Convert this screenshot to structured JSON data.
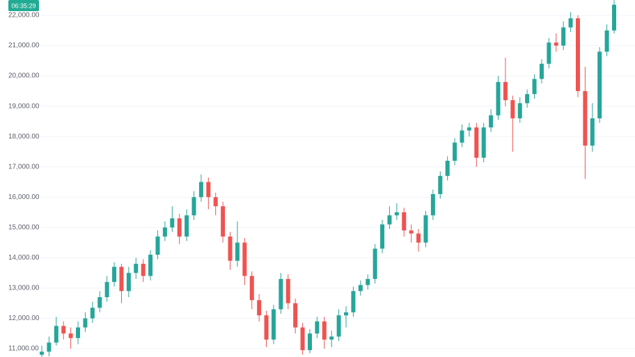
{
  "chart_data": {
    "type": "candlestick",
    "countdown": "06:35:29",
    "up_color": "#26a69a",
    "down_color": "#ef5350",
    "grid": true,
    "ylim": [
      10725,
      22505
    ],
    "yticks": [
      {
        "value": 11000,
        "label": "11,000.00"
      },
      {
        "value": 12000,
        "label": "12,000.00"
      },
      {
        "value": 13000,
        "label": "13,000.00"
      },
      {
        "value": 14000,
        "label": "14,000.00"
      },
      {
        "value": 15000,
        "label": "15,000.00"
      },
      {
        "value": 16000,
        "label": "16,000.00"
      },
      {
        "value": 17000,
        "label": "17,000.00"
      },
      {
        "value": 18000,
        "label": "18,000.00"
      },
      {
        "value": 19000,
        "label": "19,000.00"
      },
      {
        "value": 20000,
        "label": "20,000.00"
      },
      {
        "value": 21000,
        "label": "21,000.00"
      },
      {
        "value": 22000,
        "label": "22,000.00"
      }
    ],
    "open": [
      10800,
      10900,
      11200,
      11750,
      11500,
      11350,
      11700,
      12000,
      12350,
      12700,
      13200,
      13700,
      12900,
      13500,
      13800,
      13400,
      14100,
      14700,
      15000,
      15300,
      14700,
      15400,
      16000,
      16500,
      16000,
      15700,
      14700,
      13900,
      14500,
      13400,
      12600,
      12100,
      11300,
      12300,
      13300,
      12500,
      11700,
      10950,
      11500,
      11900,
      11300,
      11400,
      12100,
      12200,
      12900,
      13100,
      13300,
      14300,
      15100,
      15400,
      15500,
      14900,
      14800,
      14500,
      15400,
      16100,
      16700,
      17200,
      17800,
      18200,
      18300,
      17300,
      18300,
      18700,
      19800,
      19200,
      18600,
      19100,
      19400,
      19900,
      20400,
      21100,
      21000,
      21600,
      21900,
      19500,
      17700,
      18600,
      20800,
      21500
    ],
    "high": [
      11100,
      11400,
      12050,
      11900,
      11700,
      11900,
      12200,
      12550,
      12900,
      13400,
      13850,
      13800,
      13700,
      14000,
      13950,
      14250,
      14900,
      15200,
      15700,
      15450,
      15600,
      16200,
      16750,
      16650,
      16150,
      15850,
      14850,
      15200,
      14650,
      13550,
      12800,
      12250,
      12450,
      13500,
      13450,
      12650,
      11850,
      11650,
      12050,
      12050,
      11600,
      12300,
      12400,
      13050,
      13250,
      13450,
      14450,
      15250,
      15700,
      15800,
      15650,
      15100,
      14950,
      15550,
      16250,
      16850,
      17350,
      17950,
      18400,
      18450,
      18450,
      18450,
      18900,
      20000,
      20600,
      19350,
      19300,
      19550,
      20050,
      20550,
      21250,
      21400,
      21800,
      22100,
      22000,
      20300,
      19100,
      20950,
      21700,
      22500
    ],
    "low": [
      10650,
      10750,
      11100,
      11300,
      11000,
      11150,
      11550,
      11850,
      12200,
      12550,
      13050,
      12500,
      12700,
      13300,
      13200,
      13250,
      13950,
      14550,
      14850,
      14450,
      14550,
      15250,
      15850,
      15600,
      15400,
      14500,
      13600,
      13700,
      13100,
      12300,
      11900,
      11050,
      11150,
      12150,
      12300,
      11500,
      10800,
      10850,
      11350,
      11000,
      11050,
      11250,
      11700,
      12050,
      12750,
      12950,
      13150,
      14150,
      14950,
      15250,
      14700,
      14500,
      14200,
      14350,
      15250,
      15950,
      16550,
      17050,
      17650,
      18000,
      17000,
      17150,
      18150,
      18550,
      19000,
      17500,
      18450,
      18950,
      19250,
      19750,
      20250,
      20800,
      20850,
      21450,
      19300,
      16600,
      17500,
      18450,
      20650,
      21400
    ],
    "close": [
      10900,
      11200,
      11750,
      11500,
      11350,
      11700,
      12000,
      12350,
      12700,
      13200,
      13700,
      12900,
      13500,
      13800,
      13400,
      14100,
      14700,
      15000,
      15300,
      14700,
      15400,
      16000,
      16500,
      16000,
      15700,
      14700,
      13900,
      14500,
      13400,
      12600,
      12100,
      11300,
      12300,
      13300,
      12500,
      11700,
      10950,
      11500,
      11900,
      11300,
      11400,
      12100,
      12200,
      12900,
      13100,
      13300,
      14300,
      15100,
      15400,
      15500,
      14900,
      14800,
      14500,
      15400,
      16100,
      16700,
      17200,
      17800,
      18200,
      18300,
      17300,
      18300,
      18700,
      19800,
      19200,
      18600,
      19100,
      19400,
      19900,
      20400,
      21100,
      21000,
      21600,
      21900,
      19500,
      17700,
      18600,
      20800,
      21500,
      22350
    ]
  }
}
